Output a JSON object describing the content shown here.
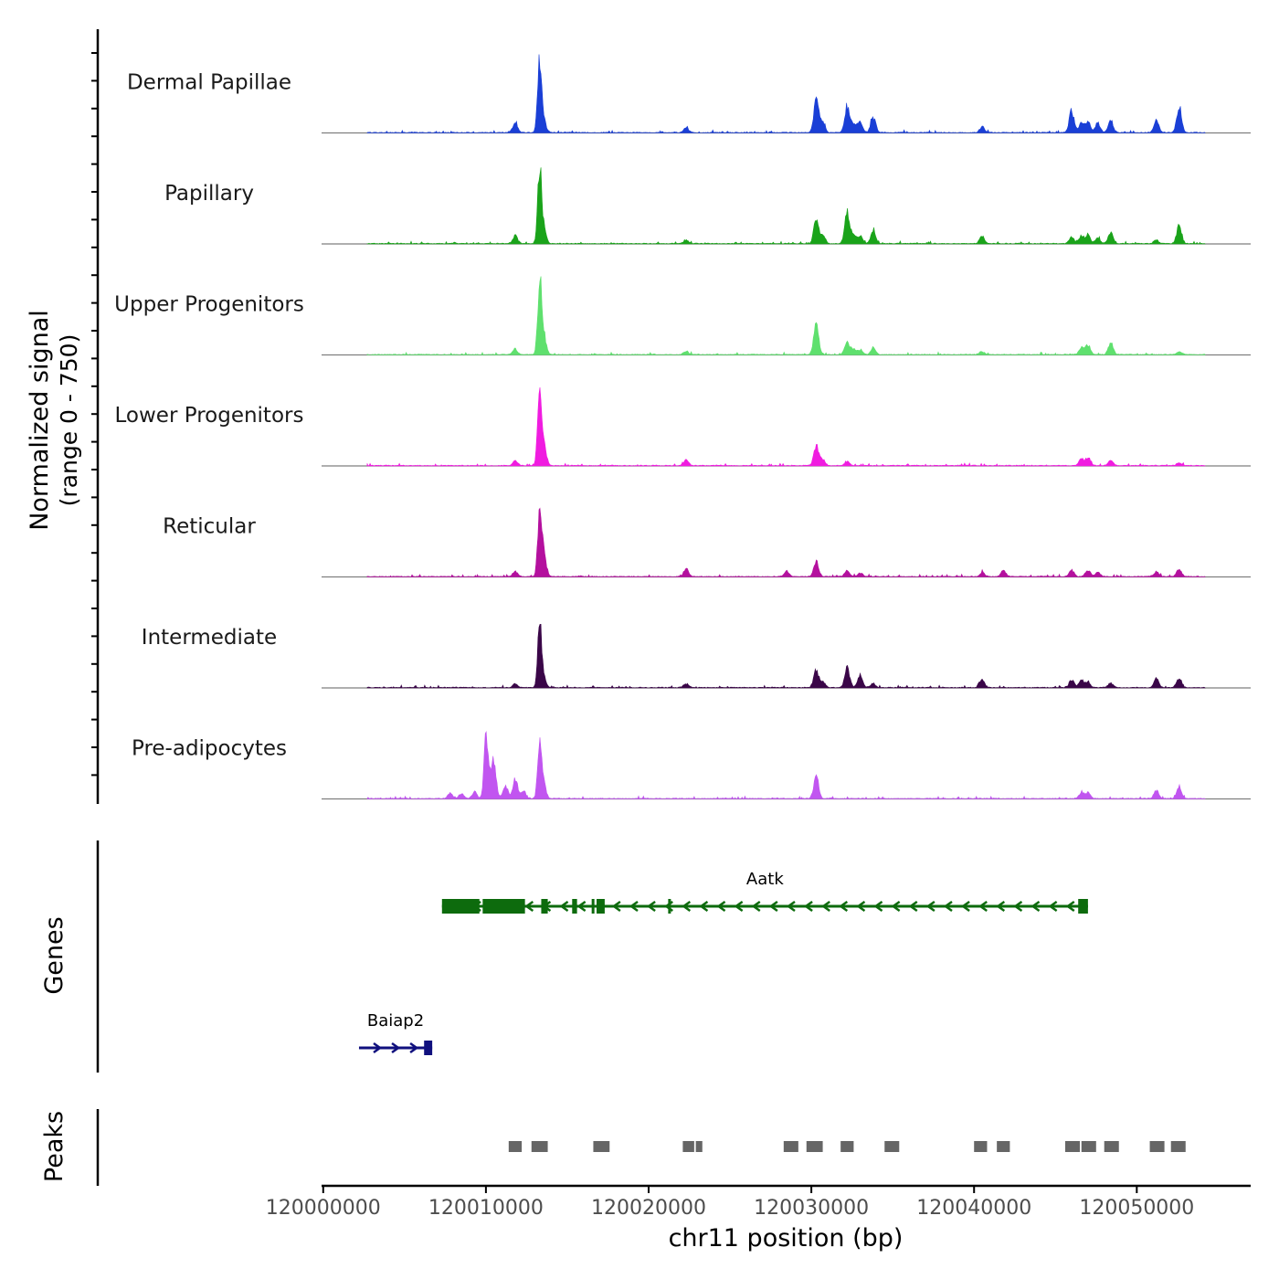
{
  "chart_data": {
    "type": "area",
    "title": "",
    "signal_ylabel_line1": "Normalized signal",
    "signal_ylabel_line2": "(range 0 - 750)",
    "ylim": [
      0,
      750
    ],
    "xlabel": "chr11 position (bp)",
    "xlim": [
      119999900,
      120057000
    ],
    "x_ticks": [
      120000000,
      120010000,
      120020000,
      120030000,
      120040000,
      120050000
    ],
    "x_tick_labels": [
      "120000000",
      "120010000",
      "120020000",
      "120030000",
      "120040000",
      "120050000"
    ],
    "signal_extent": [
      120002700,
      120054200
    ],
    "tracks": [
      {
        "name": "Dermal Papillae",
        "color": "#1a3fd6",
        "peaks": [
          [
            120011800,
            110
          ],
          [
            120013300,
            750
          ],
          [
            120013550,
            120
          ],
          [
            120022300,
            50
          ],
          [
            120030300,
            330
          ],
          [
            120030700,
            100
          ],
          [
            120032200,
            280
          ],
          [
            120032600,
            90
          ],
          [
            120033000,
            110
          ],
          [
            120033800,
            160
          ],
          [
            120040500,
            60
          ],
          [
            120046000,
            220
          ],
          [
            120046600,
            100
          ],
          [
            120047000,
            110
          ],
          [
            120047600,
            100
          ],
          [
            120048400,
            130
          ],
          [
            120051200,
            130
          ],
          [
            120052600,
            270
          ]
        ]
      },
      {
        "name": "Papillary",
        "color": "#1aa31a",
        "peaks": [
          [
            120011800,
            80
          ],
          [
            120013300,
            750
          ],
          [
            120013550,
            150
          ],
          [
            120022300,
            40
          ],
          [
            120030300,
            230
          ],
          [
            120030700,
            80
          ],
          [
            120032200,
            330
          ],
          [
            120032600,
            100
          ],
          [
            120033000,
            80
          ],
          [
            120033800,
            130
          ],
          [
            120040500,
            80
          ],
          [
            120046000,
            70
          ],
          [
            120046600,
            80
          ],
          [
            120047000,
            90
          ],
          [
            120047600,
            60
          ],
          [
            120048400,
            120
          ],
          [
            120051200,
            40
          ],
          [
            120052600,
            190
          ]
        ]
      },
      {
        "name": "Upper Progenitors",
        "color": "#5fe06e",
        "peaks": [
          [
            120011800,
            60
          ],
          [
            120013300,
            750
          ],
          [
            120013550,
            200
          ],
          [
            120022300,
            40
          ],
          [
            120030300,
            300
          ],
          [
            120032200,
            130
          ],
          [
            120032600,
            60
          ],
          [
            120033000,
            50
          ],
          [
            120033800,
            60
          ],
          [
            120040500,
            30
          ],
          [
            120046600,
            80
          ],
          [
            120047000,
            100
          ],
          [
            120048400,
            120
          ],
          [
            120052600,
            30
          ]
        ]
      },
      {
        "name": "Lower Progenitors",
        "color": "#f01ce0",
        "peaks": [
          [
            120011800,
            50
          ],
          [
            120013300,
            750
          ],
          [
            120013550,
            240
          ],
          [
            120022300,
            60
          ],
          [
            120030300,
            200
          ],
          [
            120030700,
            60
          ],
          [
            120032200,
            40
          ],
          [
            120046600,
            70
          ],
          [
            120047000,
            80
          ],
          [
            120048400,
            50
          ],
          [
            120052600,
            30
          ]
        ]
      },
      {
        "name": "Reticular",
        "color": "#b4109e",
        "peaks": [
          [
            120011800,
            50
          ],
          [
            120013300,
            600
          ],
          [
            120013550,
            260
          ],
          [
            120022300,
            80
          ],
          [
            120028500,
            60
          ],
          [
            120030300,
            150
          ],
          [
            120032200,
            60
          ],
          [
            120033000,
            40
          ],
          [
            120040500,
            40
          ],
          [
            120041800,
            60
          ],
          [
            120046000,
            60
          ],
          [
            120047000,
            70
          ],
          [
            120047600,
            50
          ],
          [
            120051200,
            50
          ],
          [
            120052600,
            80
          ]
        ]
      },
      {
        "name": "Intermediate",
        "color": "#3a0648",
        "peaks": [
          [
            120011800,
            40
          ],
          [
            120013300,
            650
          ],
          [
            120013550,
            100
          ],
          [
            120022300,
            40
          ],
          [
            120030300,
            170
          ],
          [
            120030700,
            60
          ],
          [
            120032200,
            210
          ],
          [
            120033000,
            130
          ],
          [
            120033800,
            40
          ],
          [
            120040500,
            80
          ],
          [
            120046000,
            80
          ],
          [
            120046600,
            70
          ],
          [
            120047000,
            60
          ],
          [
            120048400,
            50
          ],
          [
            120051200,
            90
          ],
          [
            120052600,
            100
          ]
        ]
      },
      {
        "name": "Pre-adipocytes",
        "color": "#c155f0",
        "peaks": [
          [
            120007800,
            60
          ],
          [
            120008500,
            50
          ],
          [
            120009300,
            70
          ],
          [
            120010000,
            650
          ],
          [
            120010300,
            150
          ],
          [
            120010500,
            300
          ],
          [
            120011200,
            130
          ],
          [
            120011800,
            200
          ],
          [
            120012300,
            80
          ],
          [
            120013300,
            600
          ],
          [
            120013550,
            150
          ],
          [
            120030300,
            230
          ],
          [
            120046600,
            60
          ],
          [
            120047000,
            60
          ],
          [
            120051200,
            80
          ],
          [
            120052600,
            110
          ]
        ]
      }
    ],
    "genes": [
      {
        "name": "Aatk",
        "color": "#0d6b0d",
        "strand": "-",
        "start": 120007300,
        "end": 120047000,
        "exons": [
          [
            120007300,
            120009600
          ],
          [
            120009800,
            120012400
          ],
          [
            120013400,
            120013800
          ],
          [
            120015300,
            120015600
          ],
          [
            120016500,
            120016650
          ],
          [
            120016800,
            120017300
          ],
          [
            120021200,
            120021350
          ],
          [
            120046400,
            120047000
          ]
        ]
      },
      {
        "name": "Baiap2",
        "color": "#10107e",
        "strand": "+",
        "start": 120002200,
        "end": 120006700,
        "exons": [
          [
            120006200,
            120006700
          ]
        ]
      }
    ],
    "peaks_label": "Peaks",
    "genes_label": "Genes",
    "peak_regions": [
      [
        120011400,
        120012200
      ],
      [
        120012800,
        120013800
      ],
      [
        120016600,
        120017600
      ],
      [
        120022100,
        120022800
      ],
      [
        120022900,
        120023300
      ],
      [
        120028300,
        120029200
      ],
      [
        120029700,
        120030700
      ],
      [
        120031800,
        120032600
      ],
      [
        120034500,
        120035400
      ],
      [
        120040000,
        120040800
      ],
      [
        120041400,
        120042200
      ],
      [
        120045600,
        120046500
      ],
      [
        120046600,
        120047500
      ],
      [
        120048000,
        120048900
      ],
      [
        120050800,
        120051700
      ],
      [
        120052100,
        120053000
      ]
    ]
  }
}
